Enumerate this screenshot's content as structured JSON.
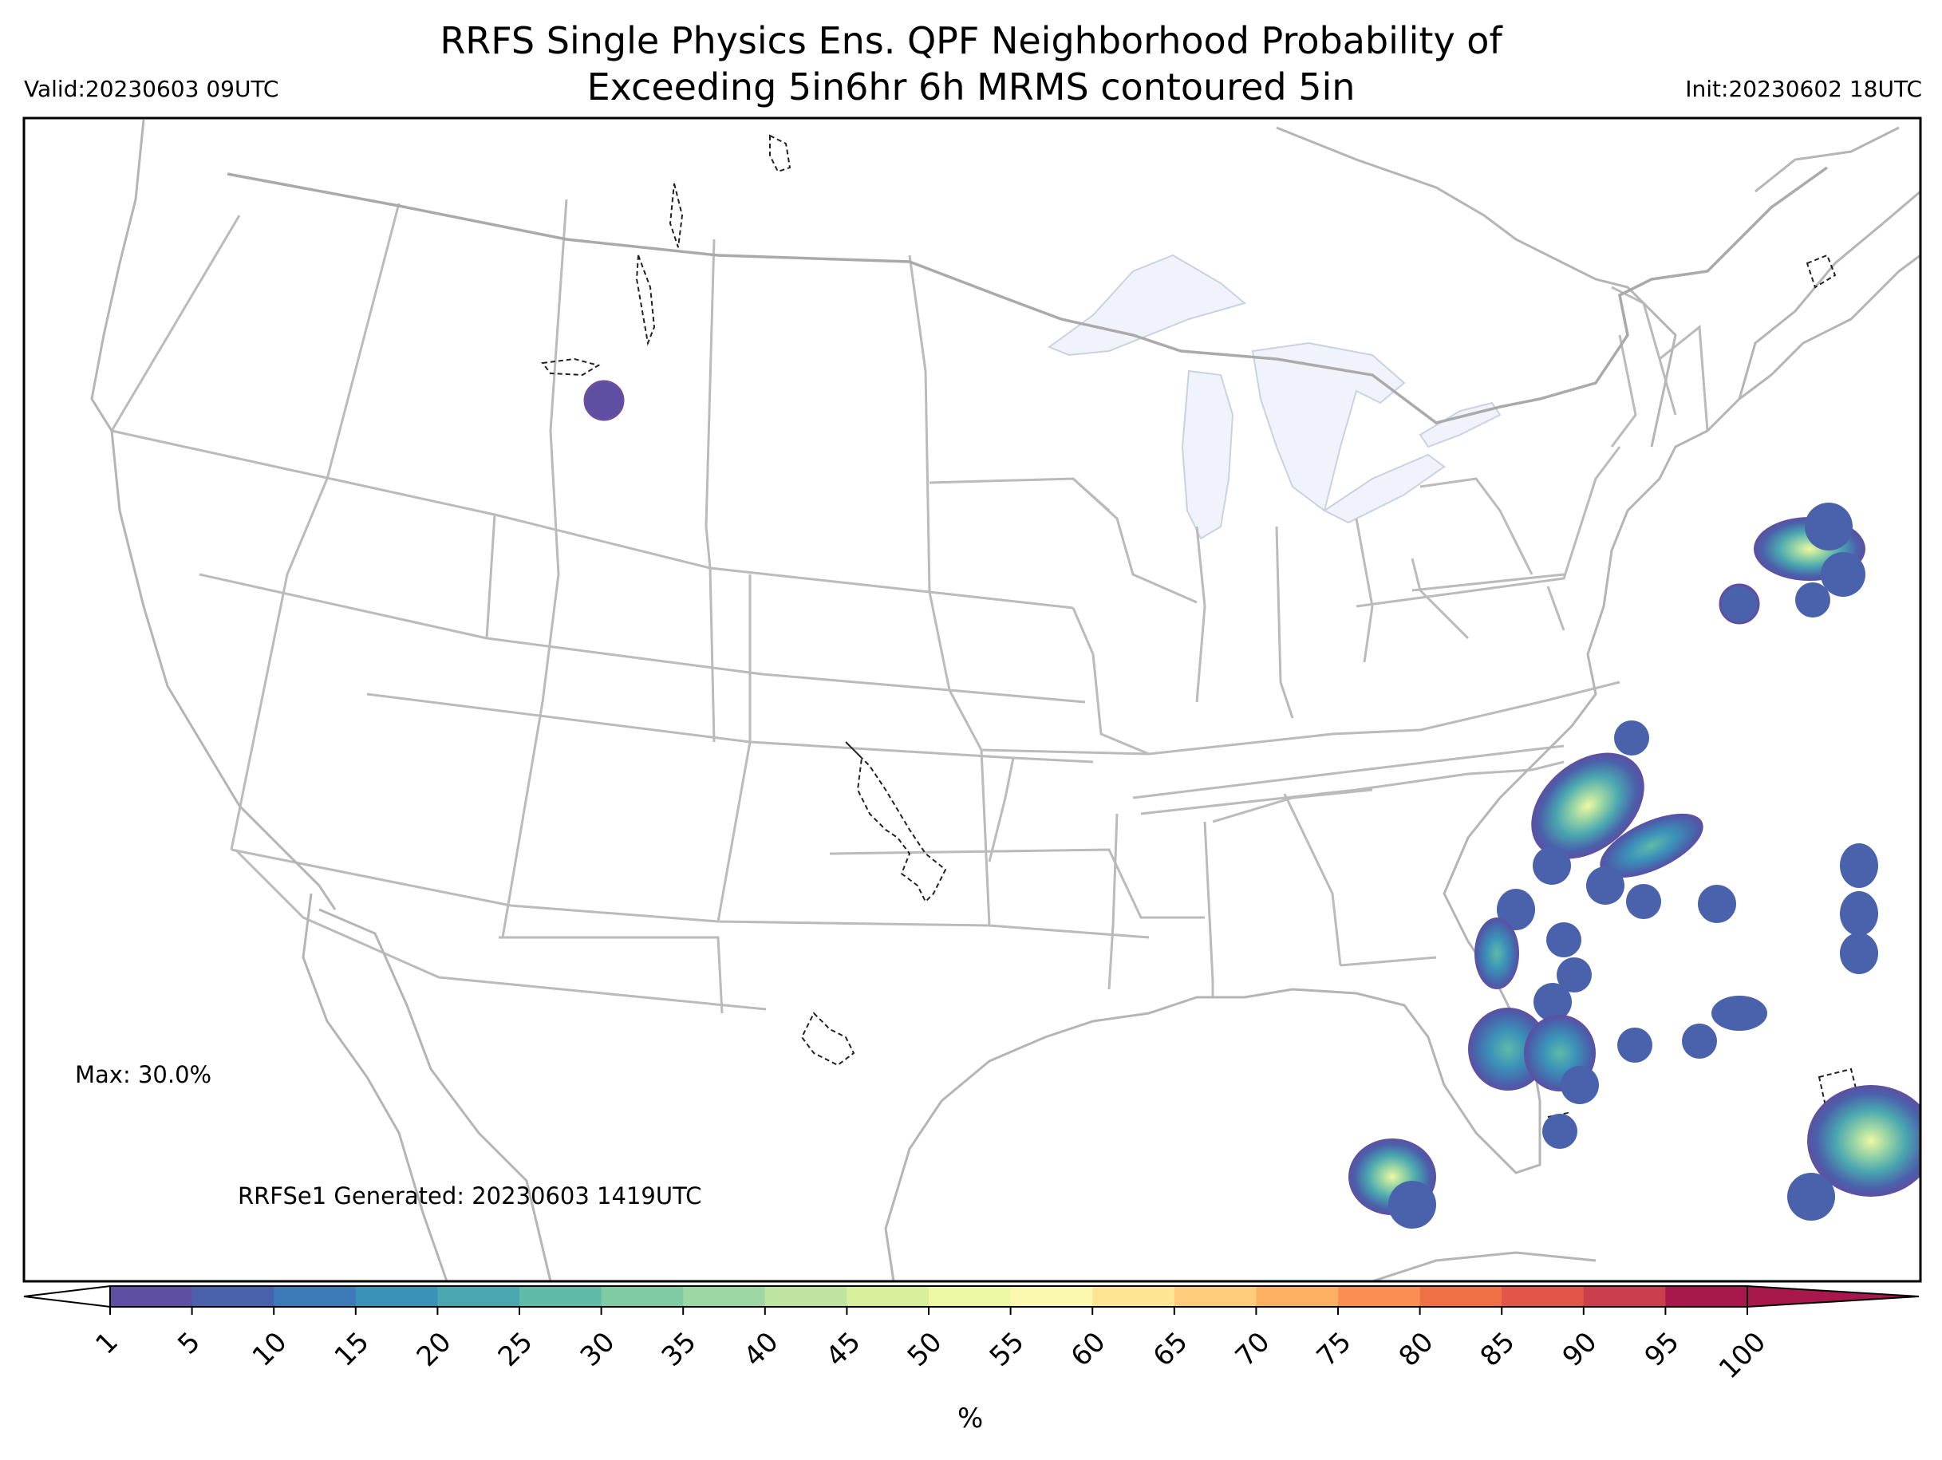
{
  "title": {
    "line1": "RRFS Single Physics Ens. QPF Neighborhood Probability of",
    "line2": "Exceeding 5in6hr 6h MRMS contoured 5in"
  },
  "valid": "Valid:20230603 09UTC",
  "init": "Init:20230602 18UTC",
  "max_label": "Max: 30.0%",
  "generated": "RRFSe1 Generated: 20230603 1419UTC",
  "colorbar": {
    "unit": "%",
    "ticks": [
      "1",
      "5",
      "10",
      "15",
      "20",
      "25",
      "30",
      "35",
      "40",
      "45",
      "50",
      "55",
      "60",
      "65",
      "70",
      "75",
      "80",
      "85",
      "90",
      "95",
      "100"
    ],
    "colors": [
      "#5e4fa2",
      "#4a61ab",
      "#3c7ab8",
      "#3b92b9",
      "#4aa7b0",
      "#5fbaa8",
      "#7fcba4",
      "#9dd7a4",
      "#bee5a0",
      "#d9ef9b",
      "#eef8a2",
      "#fbf8b0",
      "#fee593",
      "#fdcd7c",
      "#fdb062",
      "#f98f52",
      "#f16f45",
      "#e15548",
      "#cb3f4c",
      "#a8184c"
    ]
  },
  "colors": {
    "lake": "#f0f4fa",
    "boundary": "#bbbbbb",
    "coast": "#b5b5b5"
  }
}
